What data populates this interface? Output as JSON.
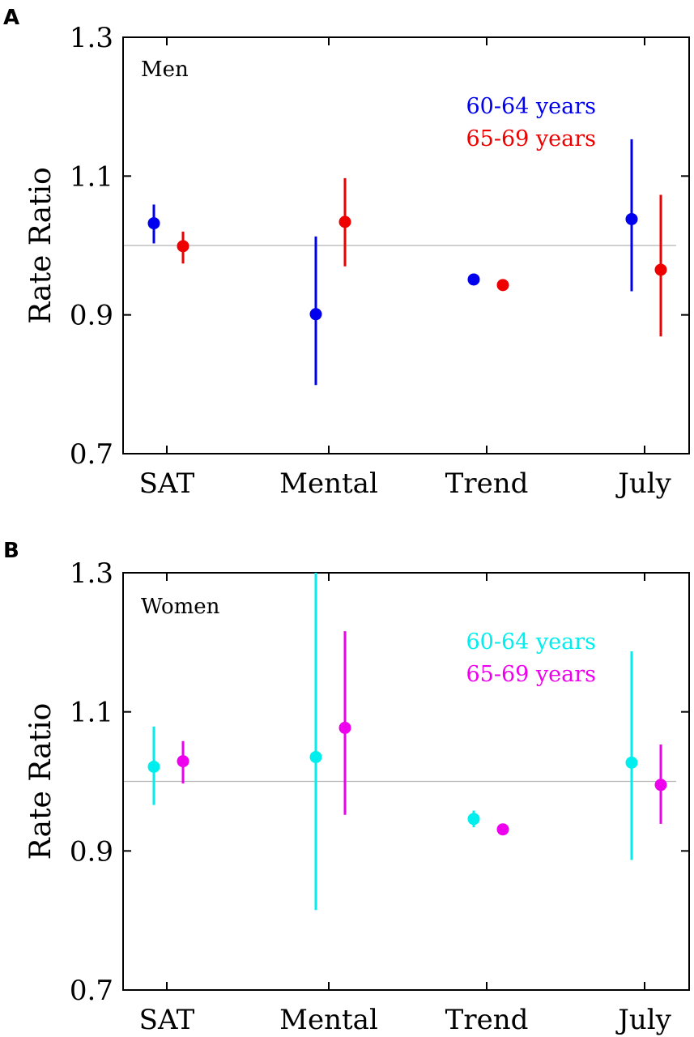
{
  "chart_data": [
    {
      "type": "scatter",
      "panel": "A",
      "title": "Men",
      "xlabel": "",
      "ylabel": "Rate Ratio",
      "ylim": [
        0.7,
        1.3
      ],
      "yticks": [
        "0.7",
        "0.9",
        "1.1",
        "1.3"
      ],
      "reference_line": 1.0,
      "grid": false,
      "legend_position": "top-right",
      "categories": [
        "SAT",
        "Mental",
        "Trend",
        "July"
      ],
      "series": [
        {
          "name": "60-64 years",
          "color": "#0000ee",
          "values": [
            1.032,
            0.901,
            0.951,
            1.038
          ],
          "lower": [
            1.003,
            0.799,
            0.951,
            0.934
          ],
          "upper": [
            1.059,
            1.013,
            0.951,
            1.153
          ]
        },
        {
          "name": "65-69 years",
          "color": "#ee0000",
          "values": [
            0.999,
            1.034,
            0.943,
            0.965
          ],
          "lower": [
            0.974,
            0.97,
            0.943,
            0.869
          ],
          "upper": [
            1.02,
            1.097,
            0.943,
            1.073
          ]
        }
      ]
    },
    {
      "type": "scatter",
      "panel": "B",
      "title": "Women",
      "xlabel": "",
      "ylabel": "Rate Ratio",
      "ylim": [
        0.7,
        1.3
      ],
      "yticks": [
        "0.7",
        "0.9",
        "1.1",
        "1.3"
      ],
      "reference_line": 1.0,
      "grid": false,
      "legend_position": "top-right",
      "categories": [
        "SAT",
        "Mental",
        "Trend",
        "July"
      ],
      "series": [
        {
          "name": "60-64 years",
          "color": "#00eeee",
          "values": [
            1.021,
            1.035,
            0.946,
            1.027
          ],
          "lower": [
            0.966,
            0.815,
            0.934,
            0.887
          ],
          "upper": [
            1.079,
            1.3,
            0.958,
            1.187
          ]
        },
        {
          "name": "65-69 years",
          "color": "#ee00ee",
          "values": [
            1.029,
            1.077,
            0.931,
            0.995
          ],
          "lower": [
            0.997,
            0.952,
            0.931,
            0.939
          ],
          "upper": [
            1.058,
            1.216,
            0.931,
            1.053
          ]
        }
      ]
    }
  ]
}
